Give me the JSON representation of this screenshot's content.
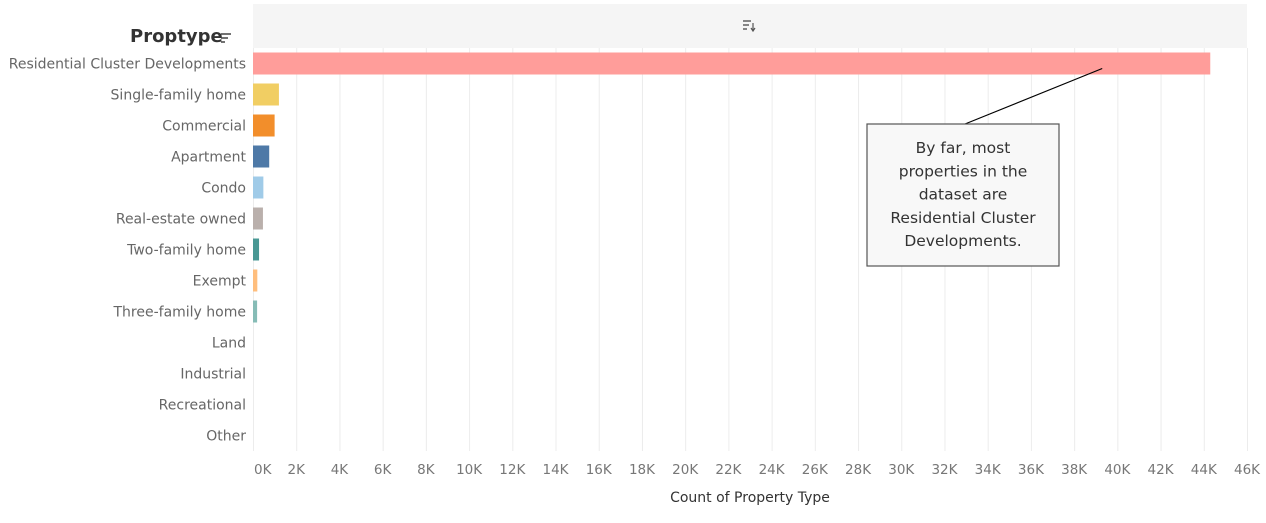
{
  "header": {
    "title": "Proptype",
    "sort_icon": "sort-icon",
    "axis_sort_icon": "sort-descending-icon"
  },
  "chart_data": {
    "type": "bar",
    "orientation": "horizontal",
    "categories": [
      "Residential Cluster Developments",
      "Single-family home",
      "Commercial",
      "Apartment",
      "Condo",
      "Real-estate owned",
      "Two-family home",
      "Exempt",
      "Three-family home",
      "Land",
      "Industrial",
      "Recreational",
      "Other"
    ],
    "values": [
      44300,
      1200,
      1000,
      750,
      480,
      460,
      280,
      200,
      190,
      0,
      0,
      0,
      0
    ],
    "colors": [
      "#ff9d9a",
      "#f1ce63",
      "#f28e2b",
      "#4e79a7",
      "#a0cbe8",
      "#bab0ac",
      "#499894",
      "#ffbe7d",
      "#86bcb6",
      "#ff9d9a",
      "#ff9d9a",
      "#ff9d9a",
      "#ff9d9a"
    ],
    "xlabel": "Count of Property Type",
    "xlim": [
      0,
      46000
    ],
    "xticks": [
      0,
      2000,
      4000,
      6000,
      8000,
      10000,
      12000,
      14000,
      16000,
      18000,
      20000,
      22000,
      24000,
      26000,
      28000,
      30000,
      32000,
      34000,
      36000,
      38000,
      40000,
      42000,
      44000,
      46000
    ],
    "xtick_labels": [
      "0K",
      "2K",
      "4K",
      "6K",
      "8K",
      "10K",
      "12K",
      "14K",
      "16K",
      "18K",
      "20K",
      "22K",
      "24K",
      "26K",
      "28K",
      "30K",
      "32K",
      "34K",
      "36K",
      "38K",
      "40K",
      "42K",
      "44K",
      "46K"
    ],
    "grid": true,
    "annotation": {
      "lines": [
        "By far, most",
        "properties in the",
        "dataset are",
        "Residential Cluster",
        "Developments."
      ],
      "target_category": "Residential Cluster Developments",
      "target_value": 39300
    }
  }
}
